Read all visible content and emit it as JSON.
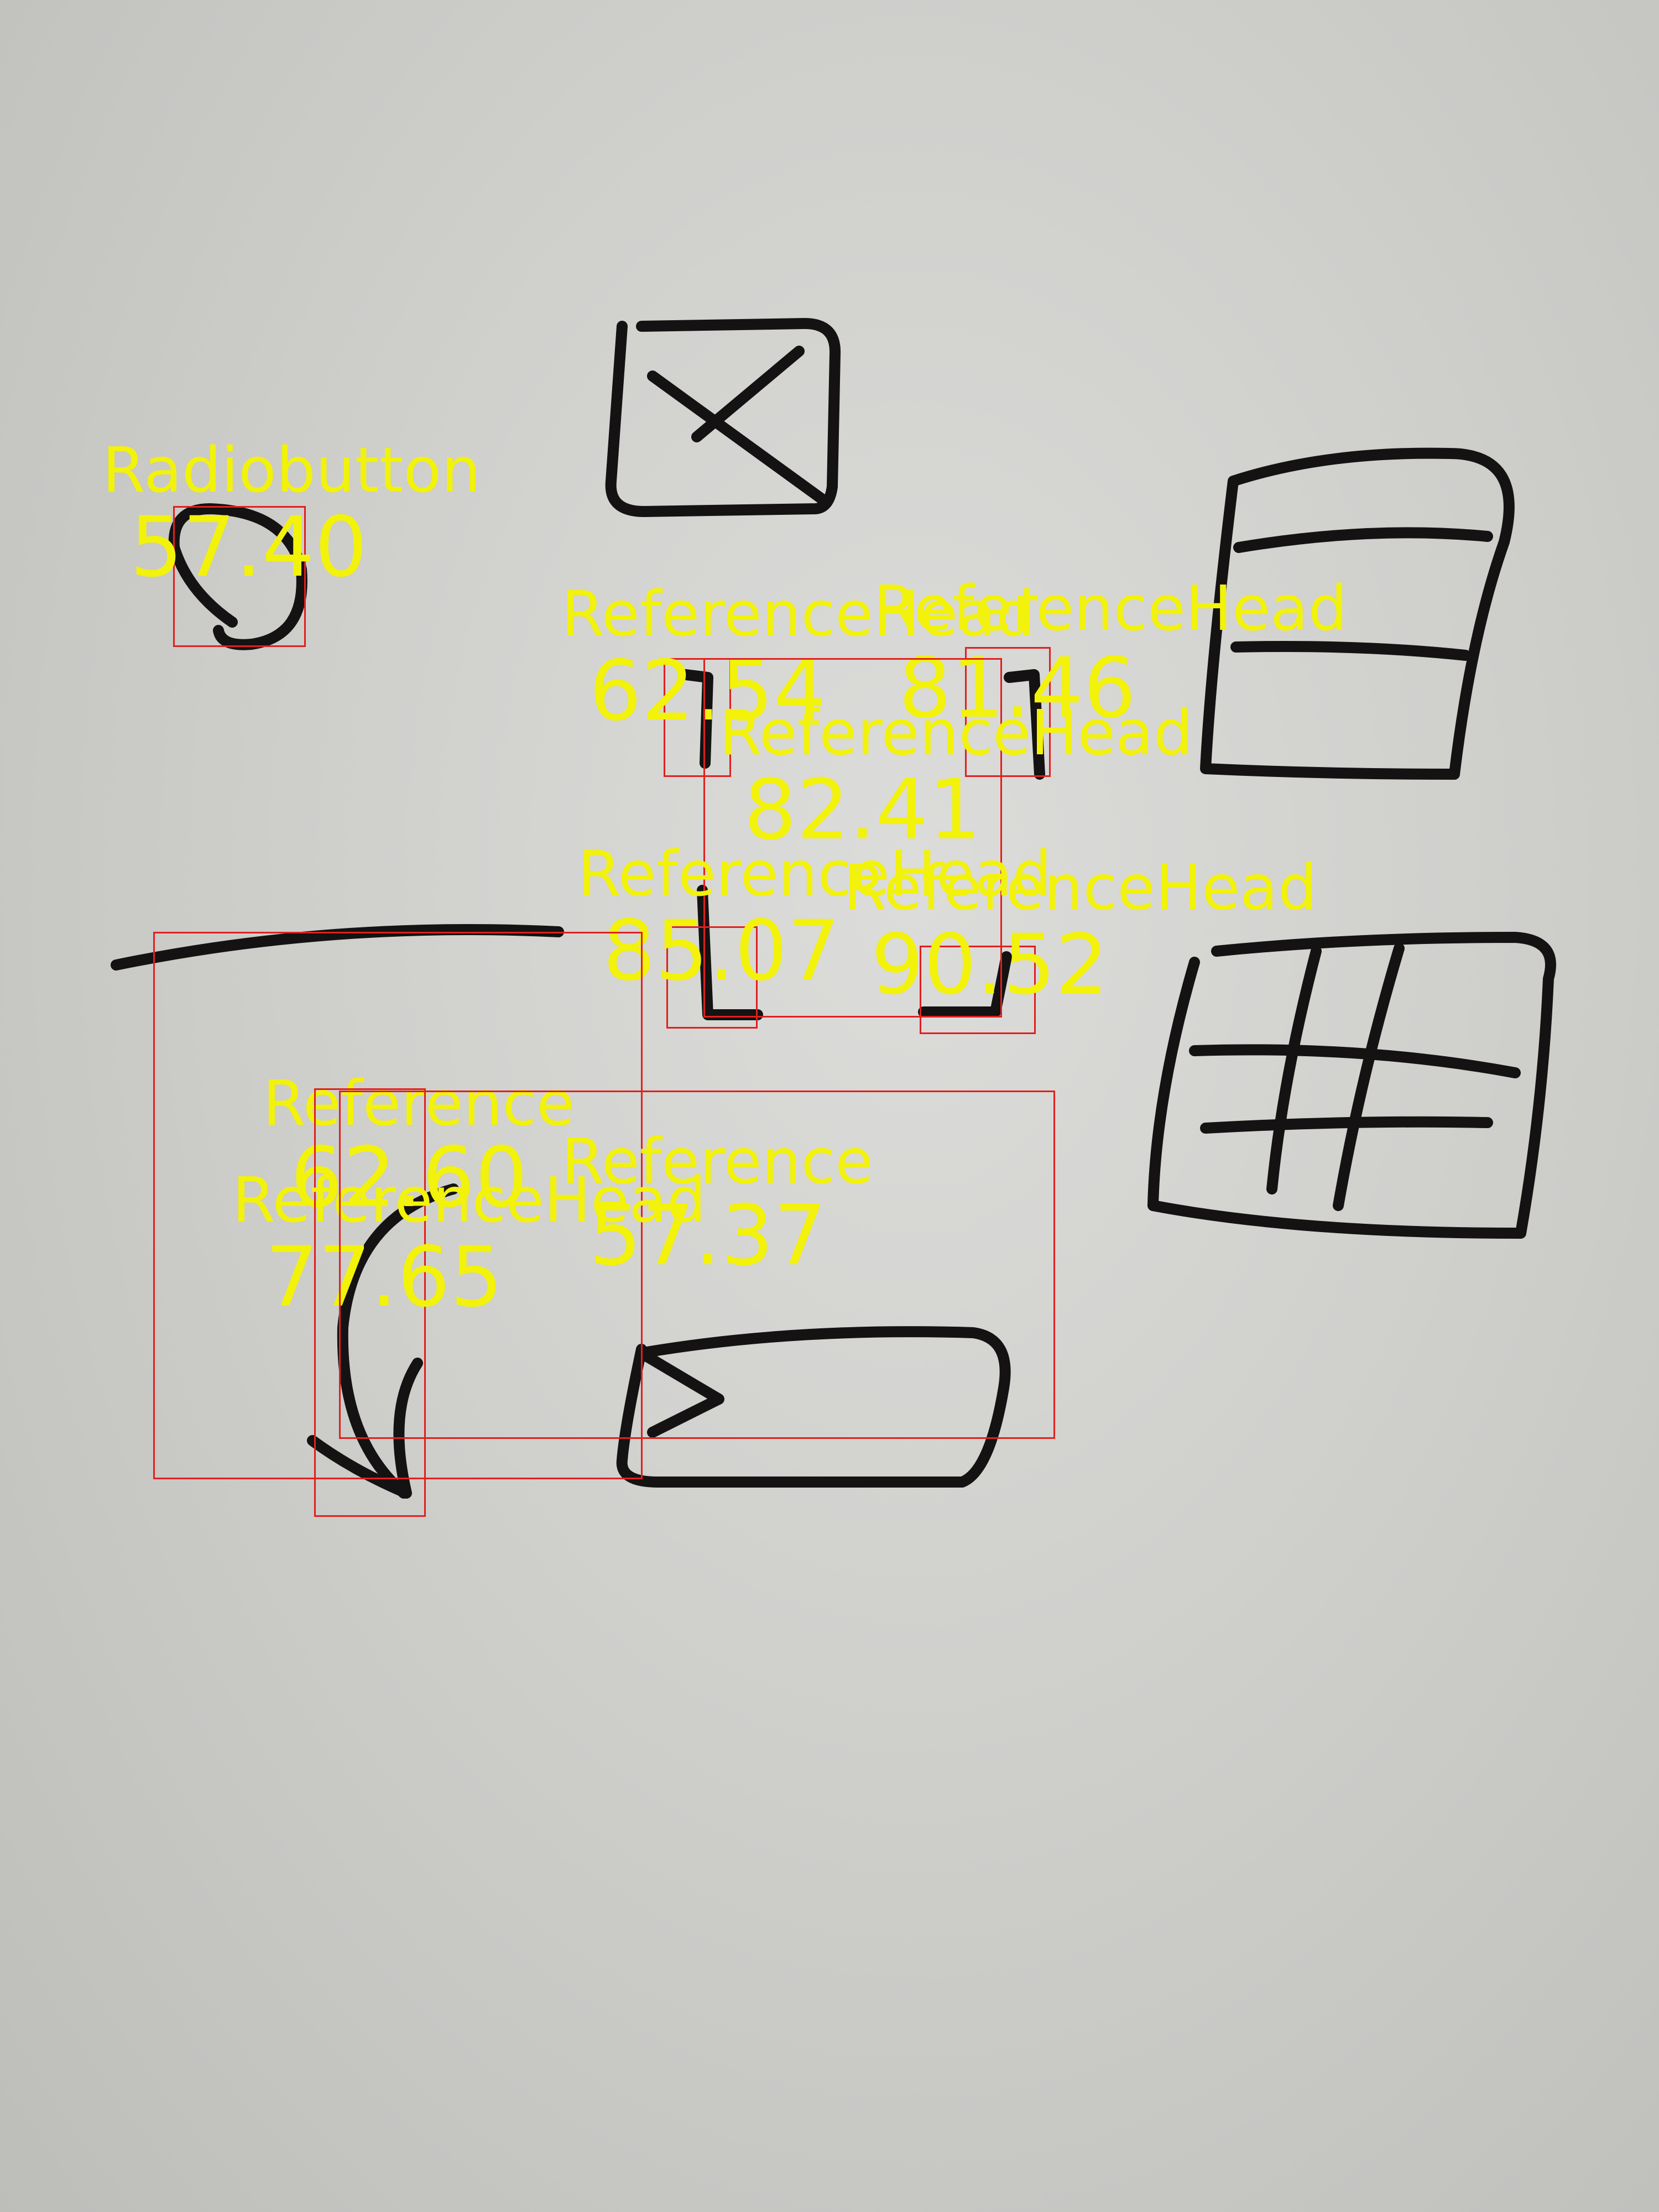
{
  "detections": [
    {
      "label": "Radiobutton",
      "score": "57.40"
    },
    {
      "label": "ReferenceHead",
      "score": "62.54"
    },
    {
      "label": "ReferenceHead",
      "score": "81.46"
    },
    {
      "label": "ReferenceHead",
      "score": "82.41"
    },
    {
      "label": "ReferenceHead",
      "score": "85.07"
    },
    {
      "label": "ReferenceHead",
      "score": "90.52"
    },
    {
      "label": "Reference",
      "score": "62.60"
    },
    {
      "label": "ReferenceHead",
      "score": "77.65"
    },
    {
      "label": "Reference",
      "score": "57.37"
    }
  ],
  "colors": {
    "box": "#e0201e",
    "label": "#f2f20a",
    "ink": "#141212"
  }
}
